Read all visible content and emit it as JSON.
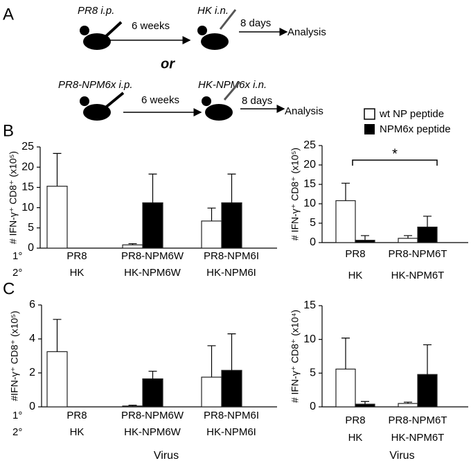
{
  "panel_labels": [
    "A",
    "B",
    "C"
  ],
  "schematic": {
    "rows": [
      {
        "prime": "PR8 i.p.",
        "interval": "6 weeks",
        "challenge": "HK i.n.",
        "wait": "8 days",
        "end": "Analysis"
      },
      {
        "prime": "PR8-NPM6x  i.p.",
        "interval": "6 weeks",
        "challenge": "HK-NPM6x  i.n.",
        "wait": "8 days",
        "end": "Analysis"
      }
    ],
    "connector": "or"
  },
  "chart_data": [
    {
      "type": "bar",
      "ylabel": "# IFN-γ⁺ CD8⁺ (x10⁵)",
      "categories": [
        "PR8",
        "PR8-NPM6W",
        "PR8-NPM6I"
      ],
      "secondary_categories": [
        "HK",
        "HK-NPM6W",
        "HK-NPM6I"
      ],
      "row_labels": [
        "1°",
        "2°"
      ],
      "series": [
        {
          "color": "#ffffff",
          "values": [
            15.3,
            0.8,
            6.7
          ],
          "errors": [
            8.1,
            0.3,
            3.2
          ]
        },
        {
          "color": "#000000",
          "values": [
            null,
            11.2,
            11.2
          ],
          "errors": [
            null,
            7.1,
            7.1
          ]
        }
      ],
      "ylim": [
        0,
        25
      ],
      "yticks": [
        0,
        5,
        10,
        15,
        20,
        25
      ]
    },
    {
      "type": "bar",
      "ylabel": "# IFN-γ⁺ CD8⁺ (x10⁵)",
      "categories": [
        "PR8",
        "PR8-NPM6T"
      ],
      "secondary_categories": [
        "HK",
        "HK-NPM6T"
      ],
      "series": [
        {
          "name": "wt NP peptide",
          "color": "#ffffff",
          "values": [
            10.8,
            1.1
          ],
          "errors": [
            4.5,
            0.7
          ]
        },
        {
          "name": "NPM6x peptide",
          "color": "#000000",
          "values": [
            0.6,
            4.0
          ],
          "errors": [
            1.2,
            2.8
          ]
        }
      ],
      "annotation": "*",
      "ylim": [
        0,
        25
      ],
      "yticks": [
        0,
        5,
        10,
        15,
        20,
        25
      ]
    },
    {
      "type": "bar",
      "ylabel": "#IFN-γ⁺ CD8⁺ (x10⁵)",
      "xlabel": "Virus",
      "categories": [
        "PR8",
        "PR8-NPM6W",
        "PR8-NPM6I"
      ],
      "secondary_categories": [
        "HK",
        "HK-NPM6W",
        "HK-NPM6I"
      ],
      "row_labels": [
        "1°",
        "2°"
      ],
      "series": [
        {
          "color": "#ffffff",
          "values": [
            3.25,
            0.05,
            1.75
          ],
          "errors": [
            1.9,
            0.05,
            1.85
          ]
        },
        {
          "color": "#000000",
          "values": [
            null,
            1.65,
            2.15
          ],
          "errors": [
            null,
            0.45,
            2.15
          ]
        }
      ],
      "ylim": [
        0,
        6
      ],
      "yticks": [
        0,
        2,
        4,
        6
      ]
    },
    {
      "type": "bar",
      "ylabel": "# IFN-γ⁺ CD8⁺ (x10⁴)",
      "xlabel": "Virus",
      "categories": [
        "PR8",
        "PR8-NPM6T"
      ],
      "secondary_categories": [
        "HK",
        "HK-NPM6T"
      ],
      "series": [
        {
          "color": "#ffffff",
          "values": [
            5.6,
            0.5
          ],
          "errors": [
            4.6,
            0.2
          ]
        },
        {
          "color": "#000000",
          "values": [
            0.4,
            4.8
          ],
          "errors": [
            0.4,
            4.4
          ]
        }
      ],
      "ylim": [
        0,
        15
      ],
      "yticks": [
        0,
        5,
        10,
        15
      ]
    }
  ]
}
